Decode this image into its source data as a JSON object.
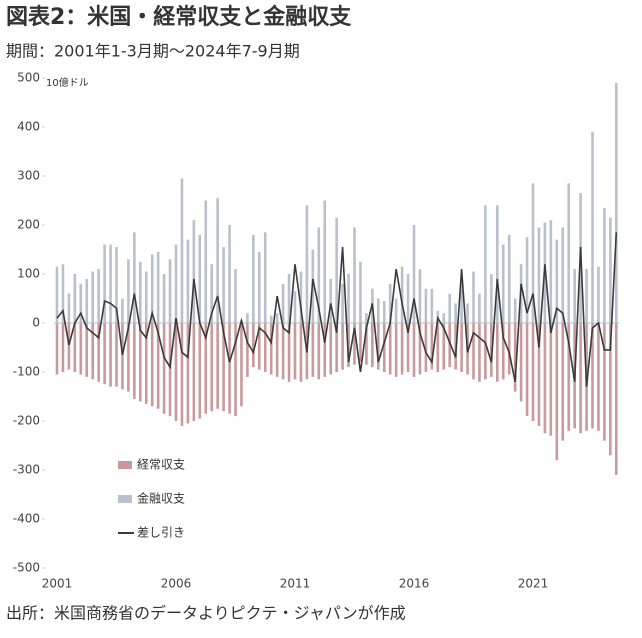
{
  "chart_data": {
    "type": "bar_line",
    "title": "図表2：米国・経常収支と金融収支",
    "subtitle": "期間：2001年1-3月期～2024年7-9月期",
    "unit_label": "10億ドル",
    "source": "出所：米国商務省のデータよりピクテ・ジャパンが作成",
    "categories": [
      "2001",
      null,
      null,
      null,
      null,
      null,
      null,
      null,
      null,
      null,
      null,
      null,
      null,
      null,
      null,
      null,
      null,
      null,
      null,
      null,
      "2006",
      null,
      null,
      null,
      null,
      null,
      null,
      null,
      null,
      null,
      null,
      null,
      null,
      null,
      null,
      null,
      null,
      null,
      null,
      null,
      "2011",
      null,
      null,
      null,
      null,
      null,
      null,
      null,
      null,
      null,
      null,
      null,
      null,
      null,
      null,
      null,
      null,
      null,
      null,
      null,
      "2016",
      null,
      null,
      null,
      null,
      null,
      null,
      null,
      null,
      null,
      null,
      null,
      null,
      null,
      null,
      null,
      null,
      null,
      null,
      null,
      "2021",
      null,
      null,
      null,
      null,
      null,
      null,
      null,
      null,
      null,
      null,
      null,
      null,
      null,
      null
    ],
    "series": [
      {
        "name": "経常収支",
        "kind": "bar",
        "color": "#c99a9b",
        "values": [
          -105,
          -100,
          -95,
          -100,
          -105,
          -110,
          -115,
          -120,
          -125,
          -130,
          -130,
          -135,
          -140,
          -155,
          -160,
          -165,
          -170,
          -175,
          -185,
          -190,
          -200,
          -210,
          -205,
          -200,
          -195,
          -185,
          -180,
          -175,
          -180,
          -185,
          -190,
          -170,
          -110,
          -90,
          -95,
          -100,
          -105,
          -110,
          -115,
          -120,
          -115,
          -120,
          -115,
          -110,
          -115,
          -110,
          -105,
          -100,
          -95,
          -90,
          -85,
          -80,
          -85,
          -90,
          -95,
          -100,
          -105,
          -110,
          -105,
          -100,
          -110,
          -105,
          -100,
          -95,
          -100,
          -95,
          -90,
          -95,
          -100,
          -105,
          -115,
          -120,
          -115,
          -110,
          -120,
          -115,
          -105,
          -140,
          -160,
          -190,
          -200,
          -210,
          -225,
          -230,
          -280,
          -240,
          -220,
          -215,
          -225,
          -220,
          -215,
          -220,
          -240,
          -270,
          -310
        ]
      },
      {
        "name": "金融収支",
        "kind": "bar",
        "color": "#b8c1cb",
        "values": [
          115,
          120,
          60,
          100,
          80,
          90,
          105,
          110,
          160,
          160,
          155,
          50,
          130,
          185,
          125,
          105,
          140,
          145,
          100,
          130,
          160,
          295,
          170,
          210,
          180,
          250,
          120,
          255,
          155,
          200,
          110,
          5,
          20,
          180,
          145,
          185,
          15,
          20,
          80,
          100,
          65,
          105,
          240,
          150,
          195,
          250,
          90,
          215,
          80,
          100,
          195,
          125,
          20,
          70,
          50,
          45,
          80,
          50,
          115,
          100,
          200,
          110,
          70,
          70,
          25,
          20,
          60,
          40,
          85,
          40,
          105,
          60,
          240,
          100,
          240,
          160,
          180,
          50,
          120,
          175,
          285,
          195,
          205,
          210,
          170,
          195,
          285,
          110,
          265,
          110,
          390,
          115,
          235,
          215,
          490
        ]
      },
      {
        "name": "差し引き",
        "kind": "line",
        "color": "#3a3a3a",
        "values": [
          10,
          25,
          -45,
          0,
          20,
          -10,
          -20,
          -30,
          45,
          40,
          30,
          -65,
          -10,
          60,
          -15,
          -30,
          20,
          -20,
          -70,
          -90,
          10,
          -60,
          -70,
          90,
          0,
          -30,
          20,
          55,
          -20,
          -80,
          -40,
          5,
          -40,
          -60,
          -10,
          -20,
          -40,
          55,
          -10,
          -20,
          120,
          30,
          -60,
          90,
          30,
          -40,
          40,
          -20,
          155,
          -80,
          -10,
          -100,
          -10,
          40,
          -80,
          -40,
          0,
          110,
          40,
          -20,
          50,
          -20,
          -60,
          -80,
          10,
          -10,
          -40,
          -70,
          110,
          -60,
          -20,
          -30,
          -40,
          -80,
          90,
          -30,
          -60,
          -120,
          80,
          20,
          60,
          -50,
          120,
          -20,
          30,
          20,
          -40,
          -120,
          155,
          -130,
          -10,
          0,
          -55,
          -55,
          185
        ]
      }
    ],
    "ylim": [
      -500,
      500
    ],
    "yticks": [
      -500,
      -400,
      -300,
      -200,
      -100,
      0,
      100,
      200,
      300,
      400,
      500
    ]
  }
}
